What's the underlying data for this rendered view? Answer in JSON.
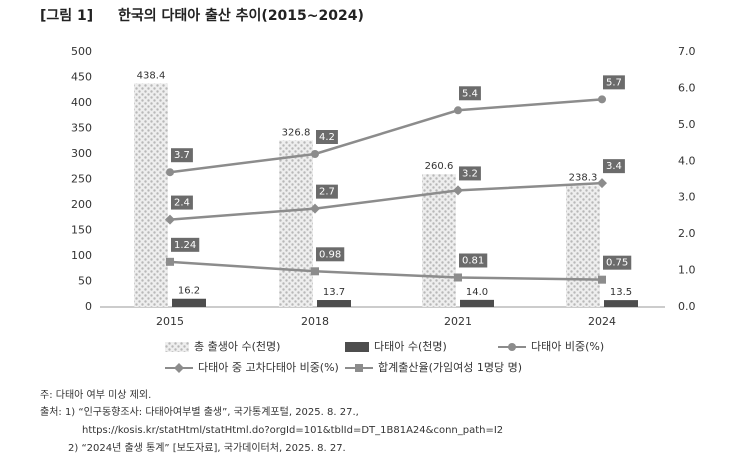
{
  "chart_data": {
    "type": "bar-line",
    "figure_label": "[그림 1]",
    "title": "한국의 다태아 출산 추이(2015~2024)",
    "categories": [
      "2015",
      "2018",
      "2021",
      "2024"
    ],
    "ylim": [
      0,
      500
    ],
    "yticks": [
      0,
      50,
      100,
      150,
      200,
      250,
      300,
      350,
      400,
      450,
      500
    ],
    "y2lim": [
      0,
      7
    ],
    "y2ticks": [
      {
        "value": 0,
        "label": "0.0"
      },
      {
        "value": 1,
        "label": "1.0"
      },
      {
        "value": 2,
        "label": "2.0"
      },
      {
        "value": 3,
        "label": "3.0"
      },
      {
        "value": 4,
        "label": "4.0"
      },
      {
        "value": 5,
        "label": "5.0"
      },
      {
        "value": 6,
        "label": "6.0"
      },
      {
        "value": 7,
        "label": "7.0"
      }
    ],
    "series": [
      {
        "name": "총 출생아 수(천명)",
        "type": "bar",
        "style": "dotted",
        "color": "#d9d9d9",
        "values": [
          438.4,
          326.8,
          260.6,
          238.3
        ]
      },
      {
        "name": "다태아 수(천명)",
        "type": "bar",
        "style": "solid",
        "color": "#4d4d4d",
        "values": [
          16.2,
          13.7,
          14.0,
          13.5
        ],
        "value_labels": [
          "16.2",
          "13.7",
          "14.0",
          "13.5"
        ]
      },
      {
        "name": "다태아 비중(%)",
        "type": "line",
        "axis": "y2",
        "marker": "circle",
        "color": "#8c8c8c",
        "values": [
          3.7,
          4.2,
          5.4,
          5.7
        ]
      },
      {
        "name": "다태아 중 고차다태아 비중(%)",
        "type": "line",
        "axis": "y2",
        "marker": "diamond",
        "color": "#8c8c8c",
        "values": [
          2.4,
          2.7,
          3.2,
          3.4
        ]
      },
      {
        "name": "합계출산율(가임여성 1명당 명)",
        "type": "line",
        "axis": "y2",
        "marker": "square",
        "color": "#8c8c8c",
        "values": [
          1.24,
          0.98,
          0.81,
          0.75
        ]
      }
    ],
    "notes": [
      "주: 다태아 여부 미상 제외.",
      "출처: 1) “인구동향조사: 다태아여부별 출생”, 국가통계포털, 2025. 8. 27.,",
      "https://kosis.kr/statHtml/statHtml.do?orgId=101&tblId=DT_1B81A24&conn_path=I2",
      "2) “2024년 출생 통계” [보도자료], 국가데이터처, 2025. 8. 27."
    ]
  }
}
